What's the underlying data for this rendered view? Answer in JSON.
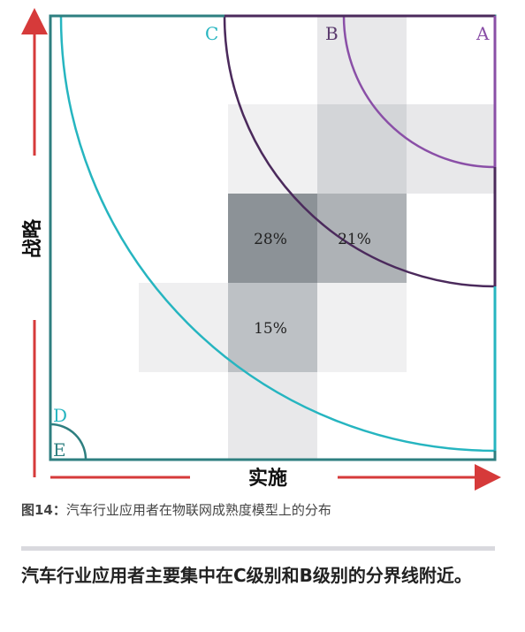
{
  "figure": {
    "zone_labels": {
      "A": "A",
      "B": "B",
      "C": "C",
      "D": "D",
      "E": "E"
    },
    "axis": {
      "y_label": "战略",
      "x_label": "实施"
    },
    "cells": [
      {
        "label": "28%",
        "shade": "#8c9297"
      },
      {
        "label": "21%",
        "shade": "#aeb2b6"
      },
      {
        "label": "15%",
        "shade": "#bdc1c5"
      }
    ],
    "colors": {
      "frame": "#2e7f80",
      "curve_a": "#8a4fa7",
      "curve_b": "#4b2a5c",
      "curve_c": "#26b5c0",
      "curve_e": "#2e7f80",
      "arrow": "#d63a3a"
    }
  },
  "caption": {
    "number": "图14：",
    "text": "汽车行业应用者在物联网成熟度模型上的分布"
  },
  "conclusion": "汽车行业应用者主要集中在C级别和B级别的分界线附近。"
}
